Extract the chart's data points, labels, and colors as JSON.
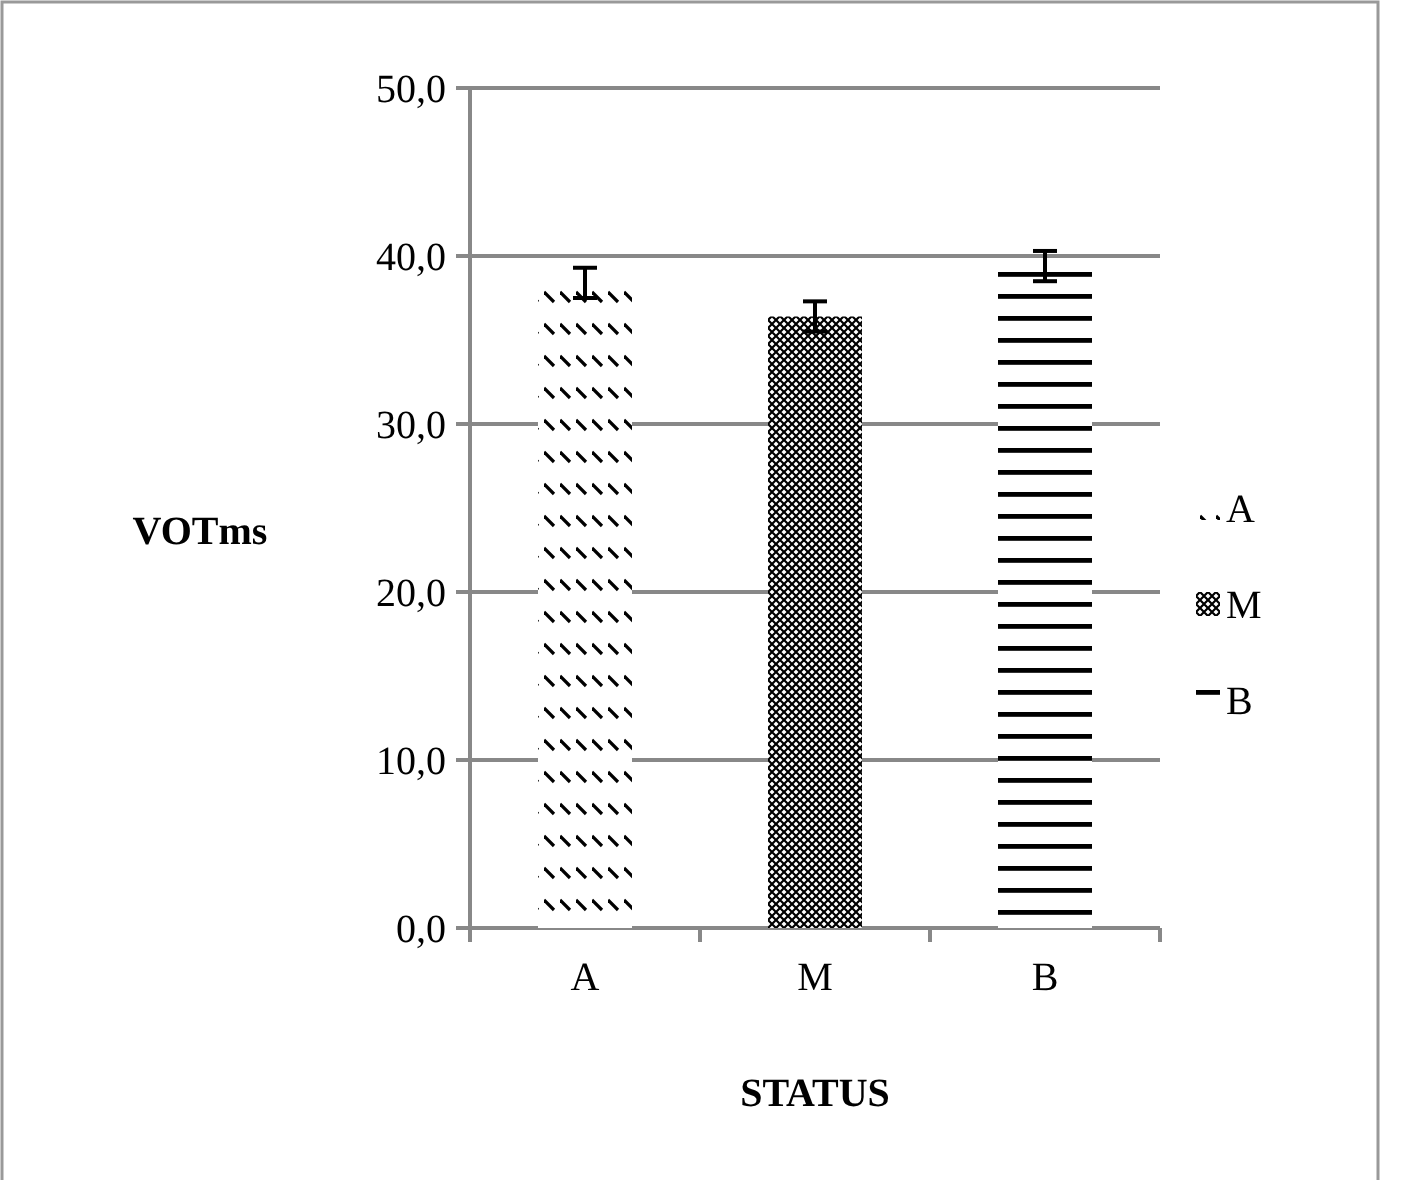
{
  "chart_data": {
    "type": "bar",
    "xlabel": "STATUS",
    "ylabel": "VOTms",
    "categories": [
      "A",
      "M",
      "B"
    ],
    "series": [
      {
        "name": "A",
        "color": "#000000",
        "values": [
          38.4,
          null,
          null
        ],
        "errors": [
          0.9,
          null,
          null
        ]
      },
      {
        "name": "M",
        "color": "#000000",
        "values": [
          null,
          36.4,
          null
        ],
        "errors": [
          null,
          0.9,
          null
        ]
      },
      {
        "name": "B",
        "color": "#000000",
        "values": [
          null,
          null,
          39.4
        ],
        "errors": [
          null,
          null,
          0.9
        ]
      }
    ],
    "ylim": [
      0,
      50
    ],
    "yticks": [
      {
        "value": 0,
        "label": "0,0"
      },
      {
        "value": 10,
        "label": "10,0"
      },
      {
        "value": 20,
        "label": "20,0"
      },
      {
        "value": 30,
        "label": "30,0"
      },
      {
        "value": 40,
        "label": "40,0"
      },
      {
        "value": 50,
        "label": "50,0"
      }
    ],
    "grid": "y",
    "legend": "right"
  }
}
